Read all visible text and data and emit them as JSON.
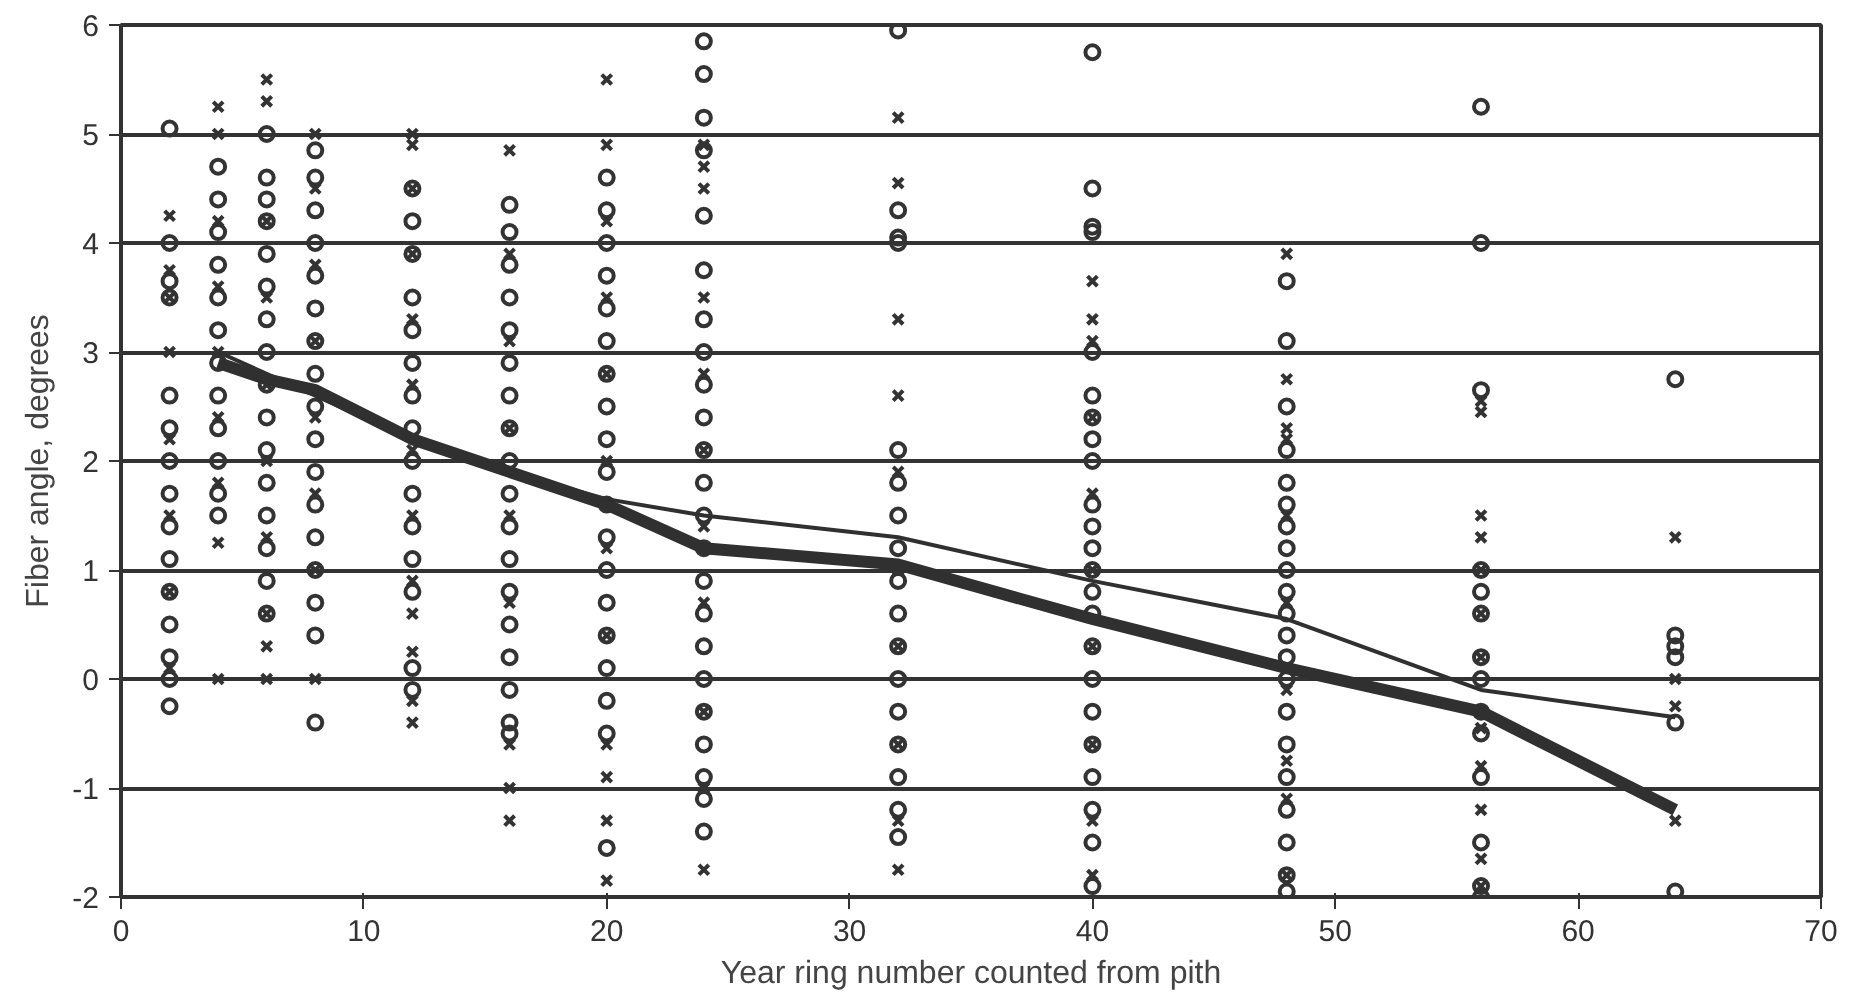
{
  "chart_data": {
    "type": "scatter",
    "xlabel": "Year ring number counted from pith",
    "ylabel": "Fiber angle, degrees",
    "xlim": [
      0,
      70
    ],
    "xticks": [
      0,
      10,
      20,
      30,
      40,
      50,
      60,
      70
    ],
    "ylim": [
      -2,
      6
    ],
    "yticks": [
      -2,
      -1,
      0,
      1,
      2,
      3,
      4,
      5,
      6
    ],
    "grid": "y",
    "series": [
      {
        "marker": "circle",
        "color": "#333333",
        "x": [
          2,
          2,
          2,
          2,
          2,
          2,
          2,
          2,
          2,
          2,
          2,
          2,
          2,
          2,
          2,
          4,
          4,
          4,
          4,
          4,
          4,
          4,
          4,
          4,
          4,
          4,
          4,
          6,
          6,
          6,
          6,
          6,
          6,
          6,
          6,
          6,
          6,
          6,
          6,
          6,
          6,
          6,
          6,
          8,
          8,
          8,
          8,
          8,
          8,
          8,
          8,
          8,
          8,
          8,
          8,
          8,
          8,
          8,
          8,
          8,
          12,
          12,
          12,
          12,
          12,
          12,
          12,
          12,
          12,
          12,
          12,
          12,
          12,
          12,
          12,
          16,
          16,
          16,
          16,
          16,
          16,
          16,
          16,
          16,
          16,
          16,
          16,
          16,
          16,
          16,
          16,
          16,
          16,
          20,
          20,
          20,
          20,
          20,
          20,
          20,
          20,
          20,
          20,
          20,
          20,
          20,
          20,
          20,
          20,
          20,
          20,
          20,
          24,
          24,
          24,
          24,
          24,
          24,
          24,
          24,
          24,
          24,
          24,
          24,
          24,
          24,
          24,
          24,
          24,
          24,
          24,
          24,
          24,
          24,
          24,
          32,
          32,
          32,
          32,
          32,
          32,
          32,
          32,
          32,
          32,
          32,
          32,
          32,
          32,
          32,
          32,
          32,
          40,
          40,
          40,
          40,
          40,
          40,
          40,
          40,
          40,
          40,
          40,
          40,
          40,
          40,
          40,
          40,
          40,
          40,
          40,
          40,
          40,
          40,
          40,
          48,
          48,
          48,
          48,
          48,
          48,
          48,
          48,
          48,
          48,
          48,
          48,
          48,
          48,
          48,
          48,
          48,
          48,
          48,
          48,
          48,
          56,
          56,
          56,
          56,
          56,
          56,
          56,
          56,
          56,
          56,
          56,
          56,
          56,
          56,
          64,
          64,
          64,
          64,
          64,
          64
        ],
        "values": [
          5.05,
          4.0,
          3.65,
          3.5,
          2.6,
          2.3,
          2.0,
          1.7,
          1.4,
          1.1,
          0.8,
          0.5,
          0.2,
          0.0,
          -0.25,
          4.7,
          4.4,
          4.1,
          3.8,
          3.5,
          3.2,
          2.9,
          2.6,
          2.3,
          2.0,
          1.7,
          1.5,
          5.0,
          4.6,
          4.4,
          4.2,
          3.9,
          3.6,
          3.3,
          3.0,
          2.7,
          2.4,
          2.1,
          1.8,
          1.5,
          1.2,
          0.9,
          0.6,
          4.85,
          4.6,
          4.3,
          4.0,
          3.7,
          3.4,
          3.1,
          2.8,
          2.5,
          2.2,
          1.9,
          1.6,
          1.3,
          1.0,
          0.7,
          0.4,
          -0.4,
          4.5,
          4.2,
          3.9,
          3.5,
          3.2,
          2.9,
          2.6,
          2.3,
          2.0,
          1.7,
          1.4,
          1.1,
          0.8,
          0.1,
          -0.1,
          4.35,
          4.1,
          3.8,
          3.5,
          3.2,
          2.9,
          2.6,
          2.3,
          2.0,
          1.7,
          1.4,
          1.1,
          0.8,
          0.5,
          0.2,
          -0.1,
          -0.4,
          -0.5,
          4.6,
          4.3,
          4.0,
          3.7,
          3.4,
          3.1,
          2.8,
          2.5,
          2.2,
          1.9,
          1.6,
          1.3,
          1.0,
          0.7,
          0.4,
          0.1,
          -0.2,
          -0.5,
          -1.55,
          5.85,
          5.55,
          5.15,
          4.85,
          4.25,
          3.75,
          3.3,
          3.0,
          2.7,
          2.4,
          2.1,
          1.8,
          1.5,
          1.2,
          0.9,
          0.6,
          0.3,
          0.0,
          -0.3,
          -0.6,
          -0.9,
          -1.1,
          -1.4,
          5.95,
          4.3,
          4.05,
          4.0,
          2.1,
          1.8,
          1.5,
          1.2,
          0.9,
          0.6,
          0.3,
          0.0,
          -0.3,
          -0.6,
          -0.9,
          -1.2,
          -1.45,
          5.75,
          4.5,
          4.15,
          4.1,
          3.0,
          2.6,
          2.4,
          2.2,
          2.0,
          1.6,
          1.4,
          1.2,
          1.0,
          0.8,
          0.6,
          0.3,
          0.0,
          -0.3,
          -0.6,
          -0.9,
          -1.2,
          -1.5,
          -1.9,
          3.65,
          3.1,
          2.5,
          2.1,
          1.8,
          1.6,
          1.4,
          1.2,
          1.0,
          0.8,
          0.6,
          0.4,
          0.2,
          0.0,
          -0.3,
          -0.6,
          -0.9,
          -1.2,
          -1.5,
          -1.8,
          -1.95,
          5.25,
          4.0,
          2.65,
          1.0,
          0.8,
          0.6,
          0.2,
          0.0,
          -0.3,
          -0.5,
          -0.9,
          -1.5,
          -1.9,
          -2.0,
          2.75,
          0.4,
          0.3,
          0.2,
          -0.4,
          -1.95
        ]
      },
      {
        "marker": "cross",
        "color": "#333333",
        "x": [
          2,
          2,
          2,
          2,
          2,
          2,
          2,
          2,
          4,
          4,
          4,
          4,
          4,
          4,
          4,
          4,
          4,
          6,
          6,
          6,
          6,
          6,
          6,
          6,
          6,
          6,
          6,
          8,
          8,
          8,
          8,
          8,
          8,
          8,
          8,
          12,
          12,
          12,
          12,
          12,
          12,
          12,
          12,
          12,
          12,
          12,
          12,
          12,
          16,
          16,
          16,
          16,
          16,
          16,
          16,
          16,
          16,
          20,
          20,
          20,
          20,
          20,
          20,
          20,
          20,
          20,
          20,
          20,
          20,
          24,
          24,
          24,
          24,
          24,
          24,
          24,
          24,
          24,
          24,
          24,
          32,
          32,
          32,
          32,
          32,
          32,
          32,
          32,
          32,
          32,
          40,
          40,
          40,
          40,
          40,
          40,
          40,
          40,
          40,
          40,
          48,
          48,
          48,
          48,
          48,
          48,
          48,
          48,
          48,
          48,
          56,
          56,
          56,
          56,
          56,
          56,
          56,
          56,
          56,
          56,
          56,
          56,
          64,
          64,
          64,
          64
        ],
        "values": [
          4.25,
          3.75,
          3.5,
          3.0,
          2.2,
          1.5,
          0.8,
          0.1,
          5.25,
          5.0,
          4.2,
          3.6,
          3.0,
          2.4,
          1.8,
          1.25,
          0.0,
          5.5,
          5.3,
          4.2,
          3.5,
          2.7,
          2.0,
          1.3,
          0.6,
          0.3,
          0.0,
          5.0,
          4.5,
          3.8,
          3.1,
          2.4,
          1.7,
          1.0,
          0.0,
          5.0,
          4.9,
          4.5,
          3.9,
          3.3,
          2.7,
          2.1,
          1.5,
          0.9,
          0.6,
          0.25,
          -0.2,
          -0.4,
          4.85,
          3.9,
          3.1,
          2.3,
          1.5,
          0.7,
          -0.6,
          -1.0,
          -1.3,
          5.5,
          4.9,
          4.2,
          3.5,
          2.8,
          2.0,
          1.2,
          0.4,
          -0.6,
          -0.9,
          -1.3,
          -1.85,
          4.9,
          4.7,
          4.5,
          3.5,
          2.8,
          2.1,
          1.4,
          0.7,
          -0.3,
          -1.0,
          -1.75,
          5.15,
          4.55,
          3.3,
          2.6,
          1.9,
          1.0,
          0.3,
          -0.6,
          -1.3,
          -1.75,
          3.65,
          3.3,
          3.1,
          2.4,
          1.7,
          1.0,
          0.3,
          -0.6,
          -1.3,
          -1.8,
          3.9,
          2.75,
          2.3,
          2.2,
          1.5,
          0.7,
          -0.1,
          -0.75,
          -1.1,
          -1.8,
          2.55,
          2.45,
          1.5,
          1.3,
          1.0,
          0.6,
          0.2,
          -0.45,
          -0.8,
          -1.2,
          -1.65,
          -1.9,
          1.3,
          0.0,
          -0.25,
          -1.3
        ]
      },
      {
        "type": "line",
        "line_style": "solid",
        "color": "#303030",
        "x": [
          4,
          6,
          8,
          12,
          16,
          20,
          24,
          32,
          40,
          48,
          56,
          64
        ],
        "values": [
          2.9,
          2.75,
          2.65,
          2.2,
          1.9,
          1.6,
          1.2,
          1.05,
          0.55,
          0.1,
          -0.3,
          -1.2
        ]
      },
      {
        "type": "line",
        "line_style": "solid",
        "color": "#303030",
        "x": [
          4,
          8,
          12,
          16,
          20,
          24,
          32,
          40,
          48,
          56,
          64
        ],
        "values": [
          3.0,
          2.6,
          2.2,
          1.9,
          1.65,
          1.5,
          1.3,
          0.9,
          0.55,
          -0.1,
          -0.35
        ]
      }
    ]
  }
}
